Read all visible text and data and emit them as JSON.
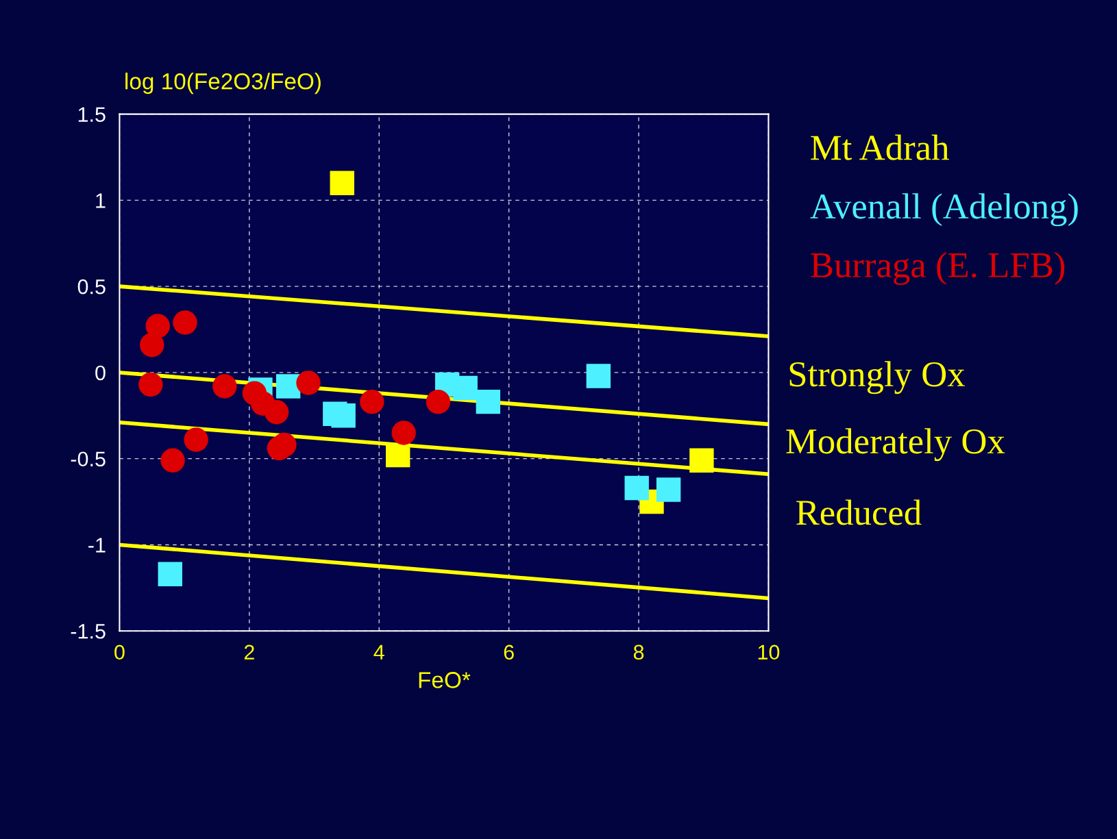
{
  "chart_data": {
    "type": "scatter",
    "xlabel": "FeO*",
    "ylabel": "log 10(Fe2O3/FeO)",
    "xlim": [
      0,
      10
    ],
    "ylim": [
      -1.5,
      1.5
    ],
    "xticks": [
      0,
      2,
      4,
      6,
      8,
      10
    ],
    "yticks": [
      -1.5,
      -1,
      -0.5,
      0,
      0.5,
      1,
      1.5
    ],
    "grid": true,
    "legend": "right",
    "series": [
      {
        "name": "Mt Adrah",
        "color": "#ffff00",
        "marker": "square",
        "x": [
          3.43,
          4.29,
          8.2,
          8.97
        ],
        "values": [
          1.1,
          -0.48,
          -0.75,
          -0.51
        ]
      },
      {
        "name": "Avenall (Adelong)",
        "color": "#4df0ff",
        "marker": "square",
        "x": [
          2.17,
          2.6,
          3.32,
          3.45,
          5.05,
          5.33,
          5.68,
          7.38,
          7.97,
          8.46,
          0.78
        ],
        "values": [
          -0.1,
          -0.08,
          -0.24,
          -0.25,
          -0.07,
          -0.09,
          -0.17,
          -0.02,
          -0.67,
          -0.68,
          -1.17
        ]
      },
      {
        "name": "Burraga (E. LFB)",
        "color": "#dd0000",
        "marker": "circle",
        "x": [
          0.5,
          0.59,
          1.01,
          0.48,
          1.62,
          1.18,
          0.82,
          2.08,
          2.21,
          2.42,
          2.46,
          2.54,
          2.91,
          3.89,
          4.38,
          4.91
        ],
        "values": [
          0.16,
          0.27,
          0.29,
          -0.07,
          -0.08,
          -0.39,
          -0.51,
          -0.12,
          -0.18,
          -0.23,
          -0.44,
          -0.42,
          -0.06,
          -0.17,
          -0.35,
          -0.17
        ]
      },
      {
        "type": "line",
        "color": "#ffff00",
        "x": [
          0,
          10
        ],
        "values": [
          0.5,
          0.21
        ]
      },
      {
        "type": "line",
        "color": "#ffff00",
        "x": [
          0,
          10
        ],
        "values": [
          0,
          -0.3
        ]
      },
      {
        "type": "line",
        "color": "#ffff00",
        "x": [
          0,
          10
        ],
        "values": [
          -0.29,
          -0.59
        ]
      },
      {
        "type": "line",
        "color": "#ffff00",
        "x": [
          0,
          10
        ],
        "values": [
          -1,
          -1.31
        ]
      }
    ],
    "annotations": [
      "Strongly Ox",
      "Moderately Ox",
      "Reduced"
    ]
  }
}
